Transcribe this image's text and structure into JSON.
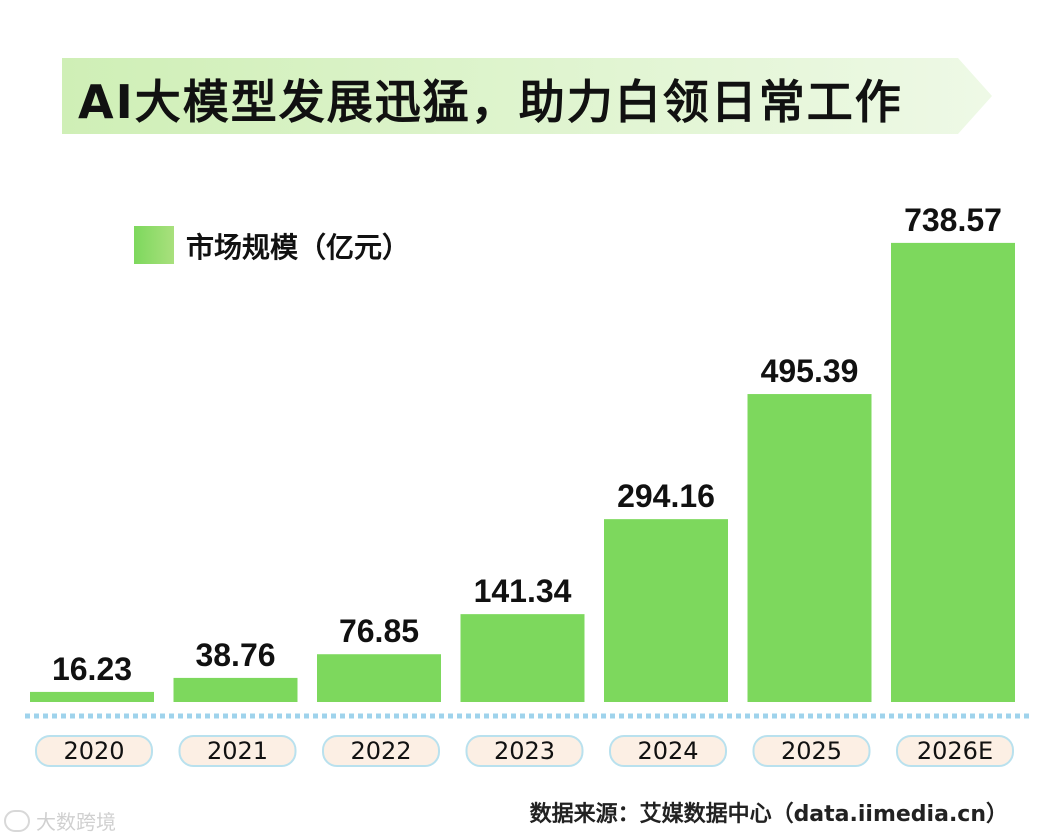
{
  "banner": {
    "title": "AI大模型发展迅猛，助力白领日常工作"
  },
  "legend": {
    "label": "市场规模（亿元）"
  },
  "chart_data": {
    "type": "bar",
    "title": "AI大模型发展迅猛，助力白领日常工作",
    "categories": [
      "2020",
      "2021",
      "2022",
      "2023",
      "2024",
      "2025",
      "2026E"
    ],
    "series": [
      {
        "name": "市场规模（亿元）",
        "values": [
          16.23,
          38.76,
          76.85,
          141.34,
          294.16,
          495.39,
          738.57
        ]
      }
    ],
    "value_labels": [
      "16.23",
      "38.76",
      "76.85",
      "141.34",
      "294.16",
      "495.39",
      "738.57"
    ],
    "xlabel": "",
    "ylabel": "",
    "ylim": [
      0,
      740
    ],
    "grid": false,
    "legend_position": "top-left"
  },
  "colors": {
    "bar": "#7dd85d",
    "banner_start": "#cfefb6",
    "banner_end": "#eef9e6",
    "pill_fill": "#fcefe4",
    "pill_stroke": "#b9e1ee",
    "baseline": "#9fd3ec"
  },
  "footer": {
    "source": "数据来源：艾媒数据中心（data.iimedia.cn）",
    "watermark": "大数跨境"
  }
}
